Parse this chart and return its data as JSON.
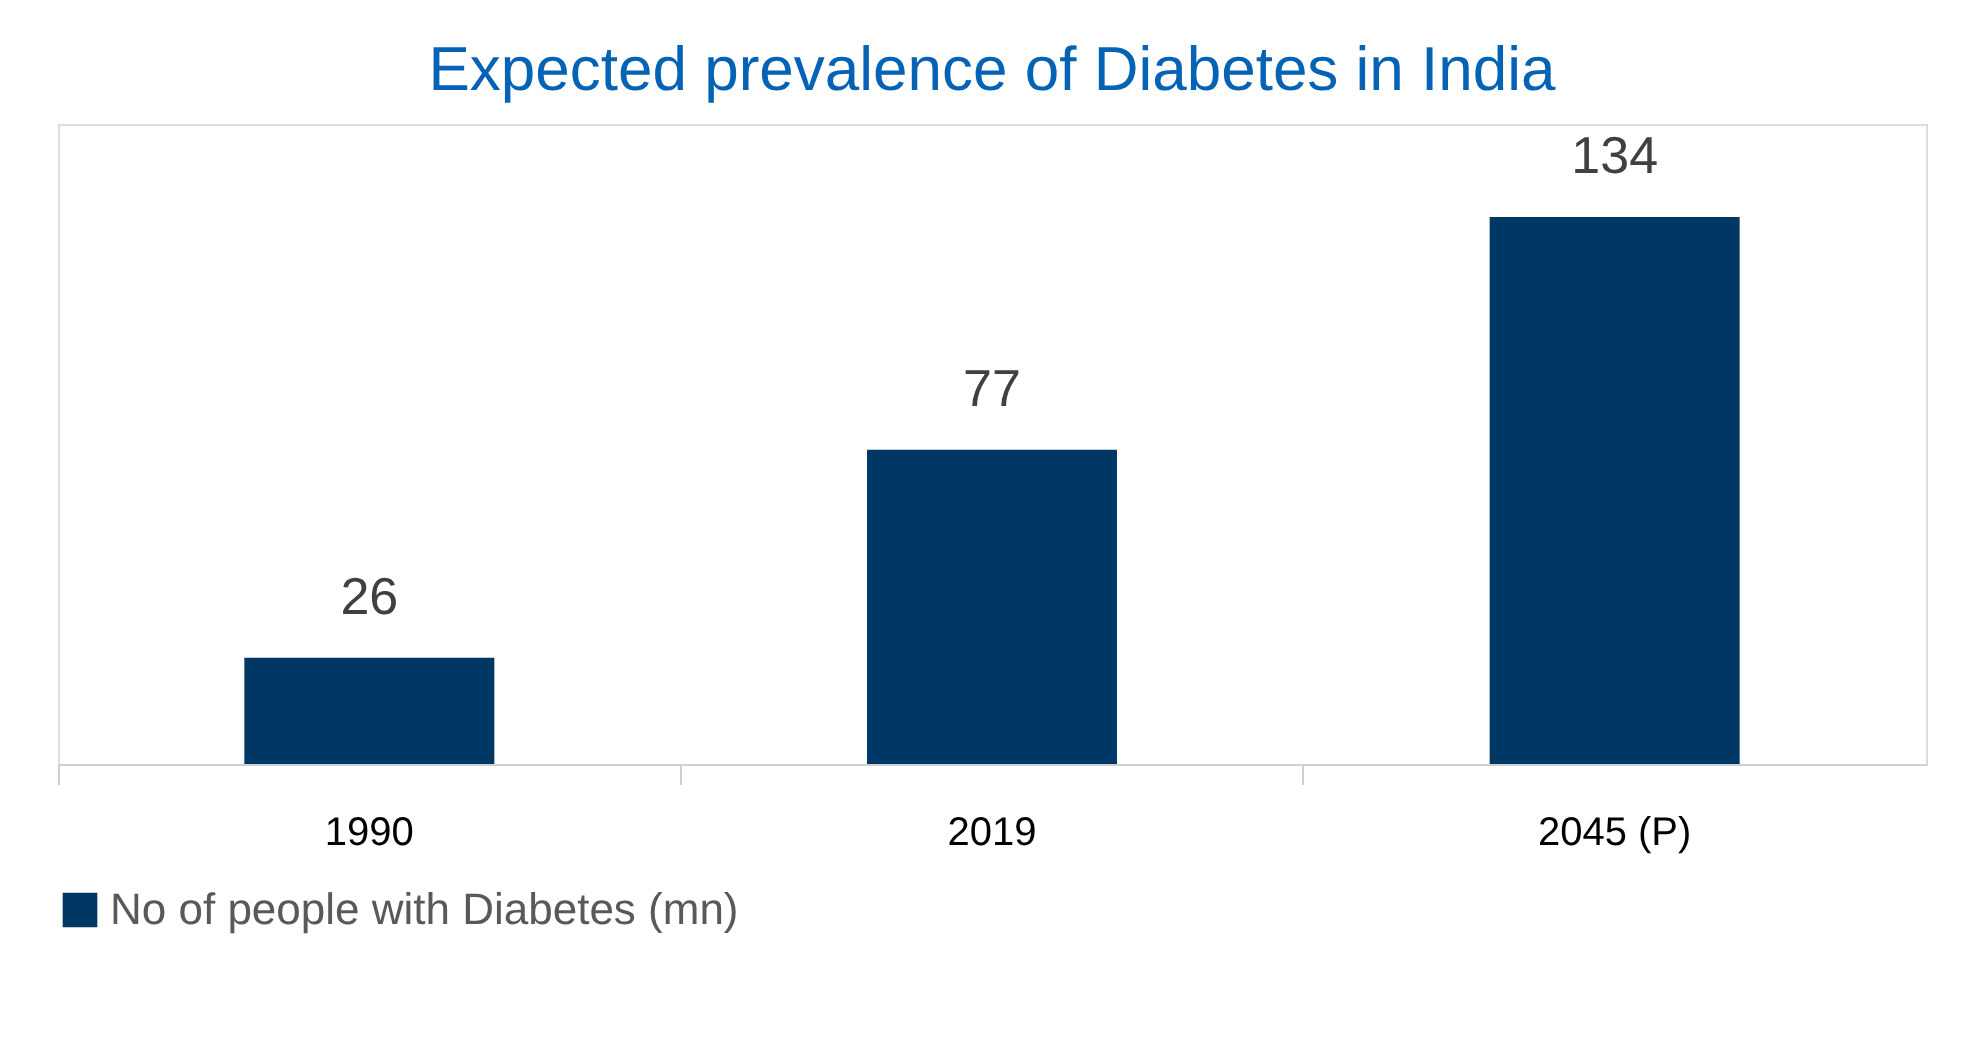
{
  "chart_data": {
    "type": "bar",
    "title": "Expected prevalence of Diabetes in India",
    "categories": [
      "1990",
      "2019",
      "2045 (P)"
    ],
    "series": [
      {
        "name": "No of people with Diabetes (mn)",
        "color": "#003865",
        "values": [
          26,
          77,
          134
        ]
      }
    ],
    "data_labels": true,
    "legend": "bottom",
    "grid": false
  }
}
